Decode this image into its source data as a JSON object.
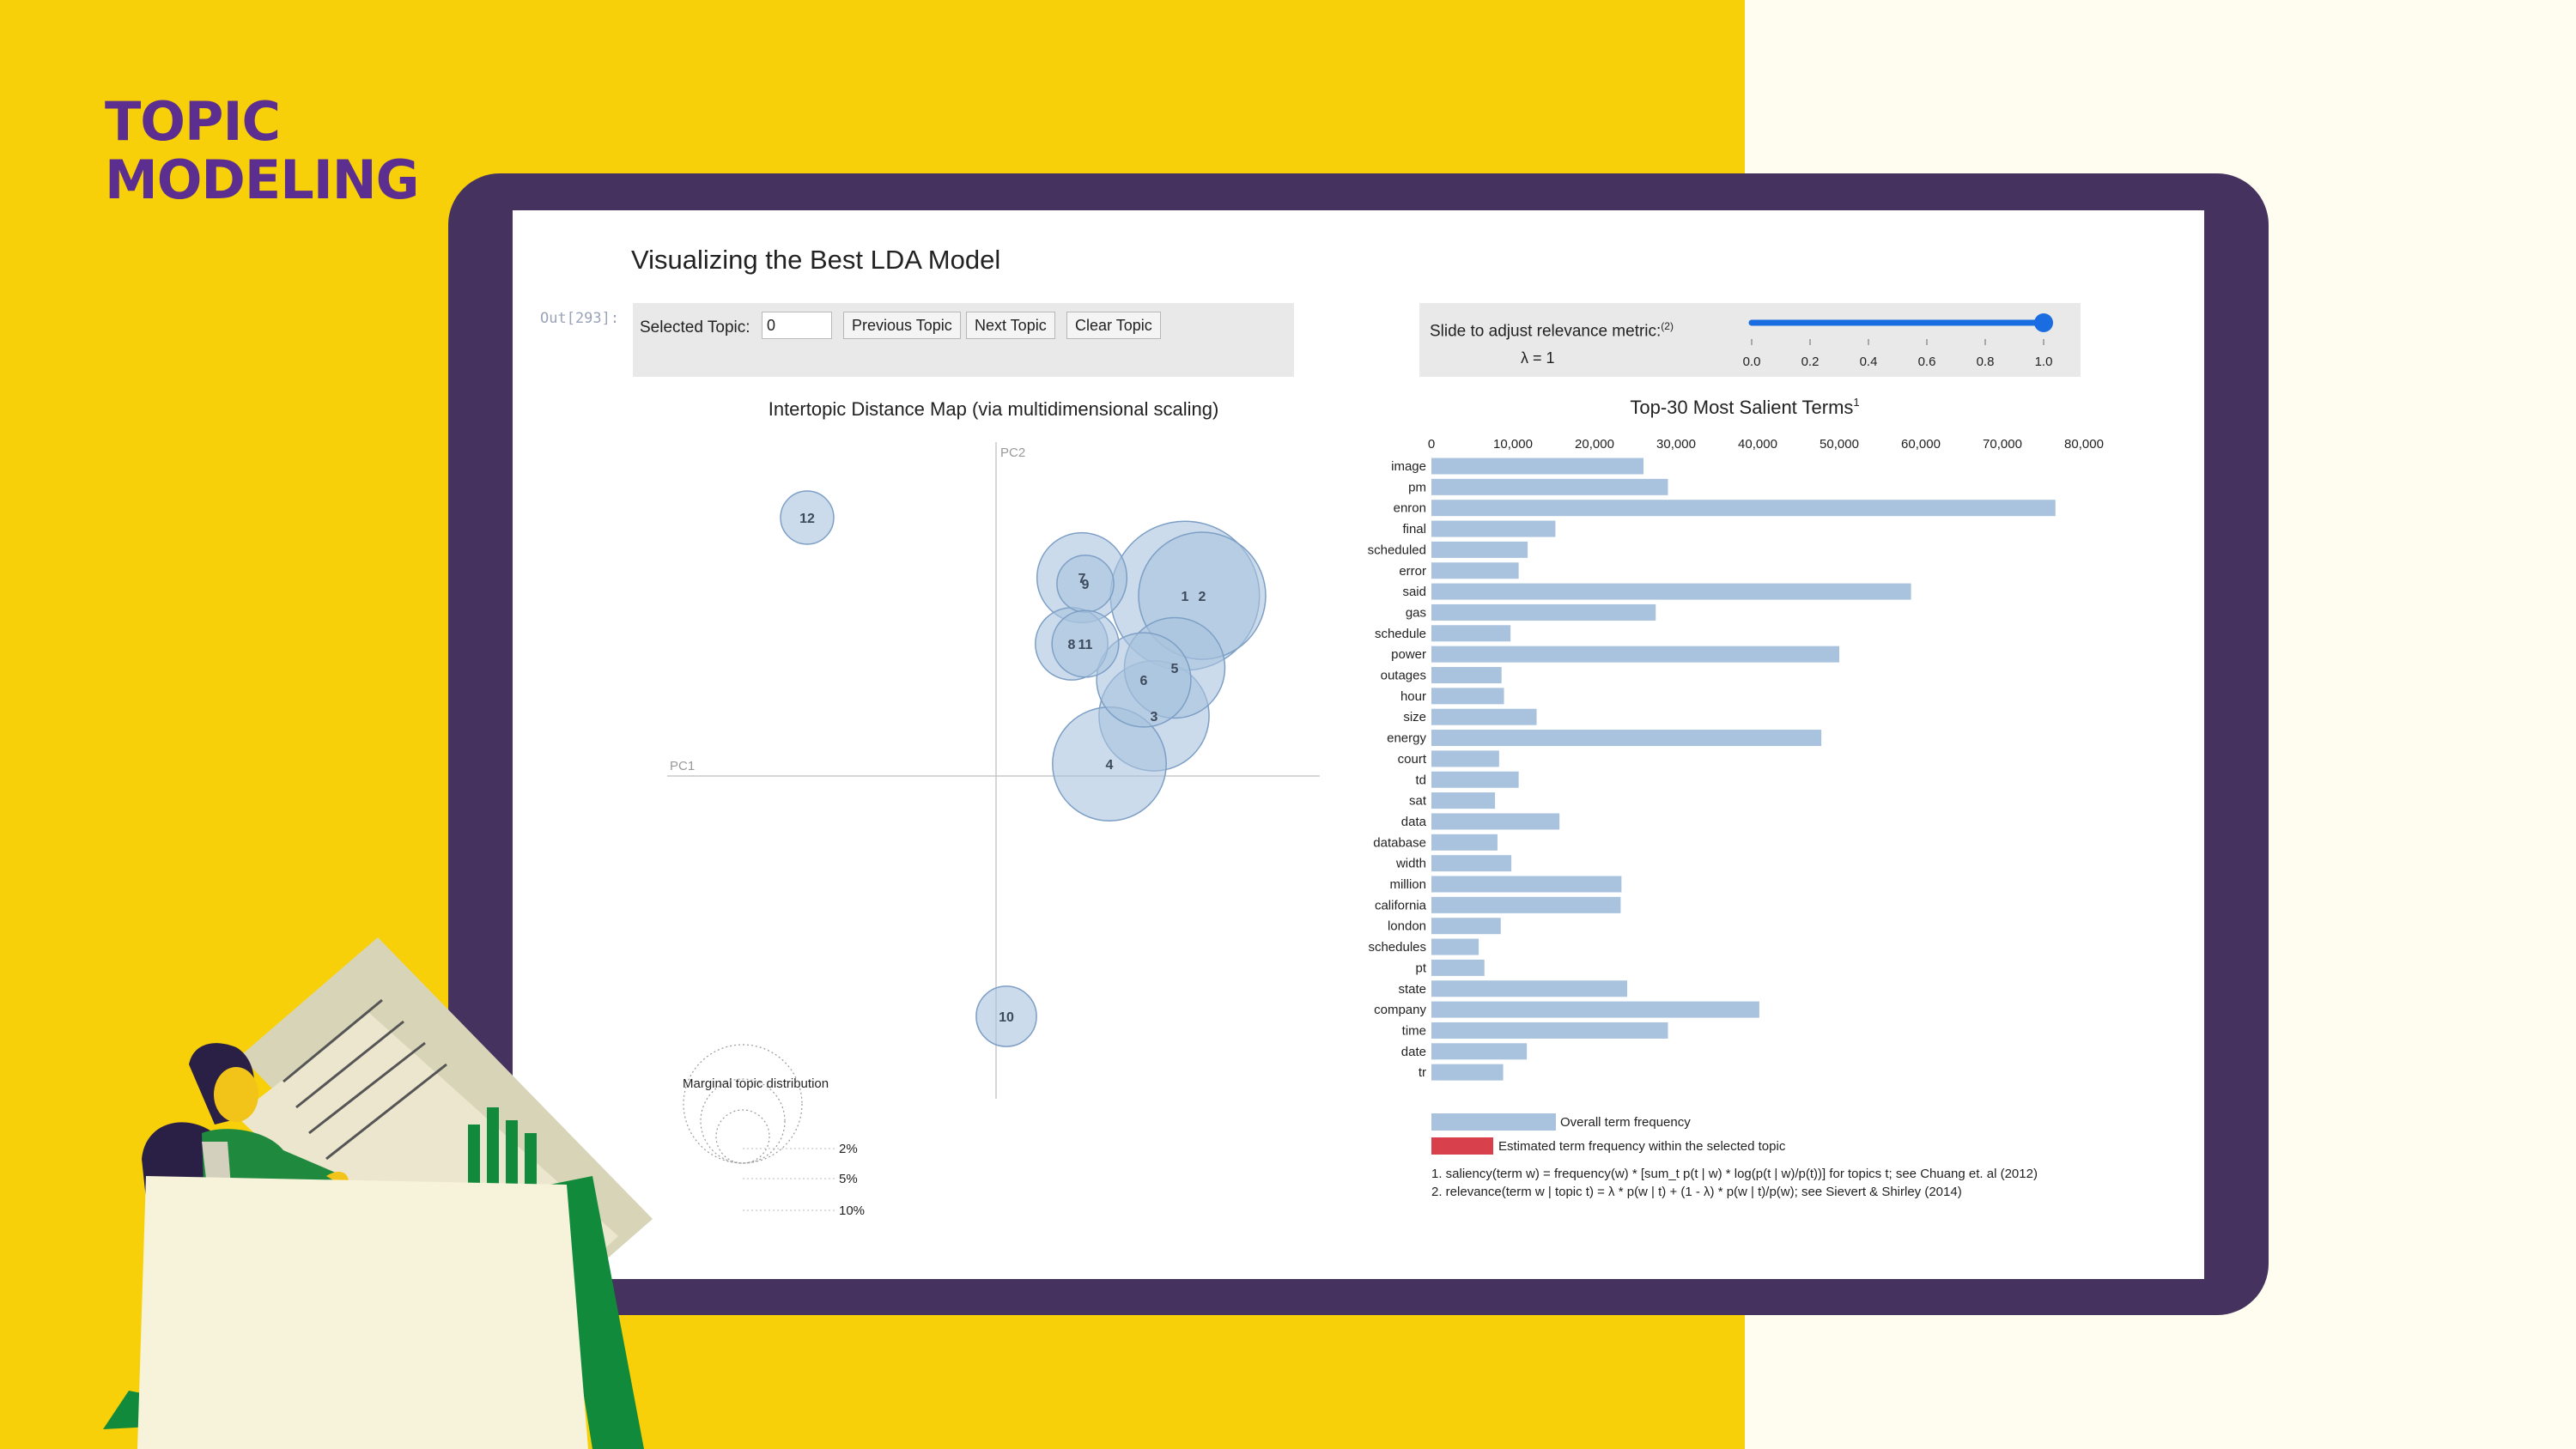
{
  "slide": {
    "title_line1": "TOPIC",
    "title_line2": "MODELING",
    "colors": {
      "background": "#f7d00a",
      "accent": "#5b2e8f",
      "frame": "#45325e",
      "cream": "#fefdf0"
    }
  },
  "notebook": {
    "title": "Visualizing the Best LDA Model",
    "out_prompt": "Out[293]:",
    "selected_topic_label": "Selected Topic:",
    "selected_topic_value": "0",
    "prev_button": "Previous Topic",
    "next_button": "Next Topic",
    "clear_button": "Clear Topic",
    "slider_label": "Slide to adjust relevance metric:",
    "slider_sup": "(2)",
    "lambda_label": "λ = 1",
    "slider_value": 1.0
  },
  "chart_data": [
    {
      "type": "scatter",
      "title": "Intertopic Distance Map (via multidimensional scaling)",
      "xlabel": "PC1",
      "ylabel": "PC2",
      "bubble_color": "#a9c3de",
      "topics": [
        {
          "label": "1",
          "x": 0.55,
          "y": 0.3,
          "size": 5.5
        },
        {
          "label": "2",
          "x": 0.6,
          "y": 0.3,
          "size": 4.0
        },
        {
          "label": "3",
          "x": 0.46,
          "y": 0.1,
          "size": 3.0
        },
        {
          "label": "4",
          "x": 0.33,
          "y": 0.02,
          "size": 3.2
        },
        {
          "label": "5",
          "x": 0.52,
          "y": 0.18,
          "size": 2.5
        },
        {
          "label": "6",
          "x": 0.43,
          "y": 0.16,
          "size": 2.2
        },
        {
          "label": "7",
          "x": 0.25,
          "y": 0.33,
          "size": 2.0
        },
        {
          "label": "8",
          "x": 0.22,
          "y": 0.22,
          "size": 1.3
        },
        {
          "label": "9",
          "x": 0.26,
          "y": 0.32,
          "size": 0.8
        },
        {
          "label": "10",
          "x": 0.03,
          "y": -0.4,
          "size": 0.9
        },
        {
          "label": "11",
          "x": 0.26,
          "y": 0.22,
          "size": 1.1
        },
        {
          "label": "12",
          "x": -0.55,
          "y": 0.43,
          "size": 0.7
        }
      ],
      "legend_title": "Marginal topic distribution",
      "legend_items": [
        "2%",
        "5%",
        "10%"
      ]
    },
    {
      "type": "bar",
      "title": "Top-30 Most Salient Terms",
      "title_sup": "1",
      "xlim": [
        0,
        80000
      ],
      "ticks": [
        "0",
        "10,000",
        "20,000",
        "30,000",
        "40,000",
        "50,000",
        "60,000",
        "70,000",
        "80,000"
      ],
      "tick_values": [
        0,
        10000,
        20000,
        30000,
        40000,
        50000,
        60000,
        70000,
        80000
      ],
      "categories": [
        "image",
        "pm",
        "enron",
        "final",
        "scheduled",
        "error",
        "said",
        "gas",
        "schedule",
        "power",
        "outages",
        "hour",
        "size",
        "energy",
        "court",
        "td",
        "sat",
        "data",
        "database",
        "width",
        "million",
        "california",
        "london",
        "schedules",
        "pt",
        "state",
        "company",
        "time",
        "date",
        "tr"
      ],
      "series": [
        {
          "name": "Overall term frequency",
          "color": "#a9c3de",
          "values": [
            26000,
            29000,
            76500,
            15200,
            11800,
            10700,
            58800,
            27500,
            9700,
            50000,
            8600,
            8900,
            12900,
            47800,
            8300,
            10700,
            7800,
            15700,
            8100,
            9800,
            23300,
            23200,
            8500,
            5800,
            6500,
            24000,
            40200,
            29000,
            11700,
            8800
          ]
        }
      ],
      "legend_items": [
        "Overall term frequency",
        "Estimated term frequency within the selected topic"
      ],
      "legend_colors": [
        "#a9c3de",
        "#d8414b"
      ],
      "footnotes": [
        "1. saliency(term w) = frequency(w) * [sum_t p(t | w) * log(p(t | w)/p(t))] for topics t; see Chuang et. al (2012)",
        "2. relevance(term w | topic t) = λ * p(w | t) + (1 - λ) * p(w | t)/p(w); see Sievert & Shirley (2014)"
      ]
    }
  ],
  "slider_ticks": [
    "0.0",
    "0.2",
    "0.4",
    "0.6",
    "0.8",
    "1.0"
  ],
  "slider_tick_values": [
    0.0,
    0.2,
    0.4,
    0.6,
    0.8,
    1.0
  ]
}
